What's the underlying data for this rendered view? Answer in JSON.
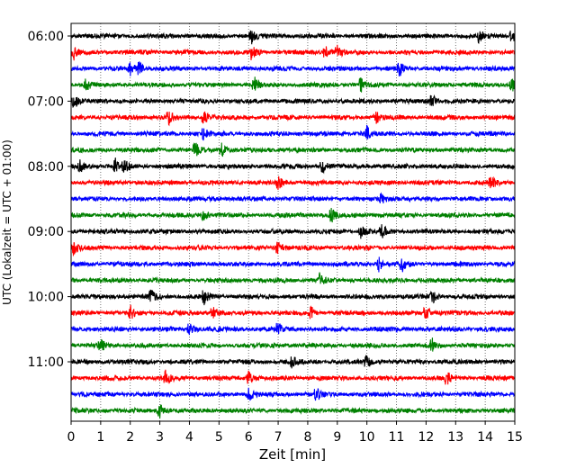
{
  "chart_data": {
    "type": "line",
    "title": "",
    "xlabel": "Zeit  [min]",
    "ylabel": "UTC (Lokalzeit = UTC + 01:00)",
    "xlim": [
      0,
      15
    ],
    "x_ticks": [
      0,
      1,
      2,
      3,
      4,
      5,
      6,
      7,
      8,
      9,
      10,
      11,
      12,
      13,
      14,
      15
    ],
    "grid": "vertical dotted",
    "legend": "none",
    "y_ticks": [
      {
        "label": "06:00",
        "row": 0
      },
      {
        "label": "07:00",
        "row": 4
      },
      {
        "label": "08:00",
        "row": 8
      },
      {
        "label": "09:00",
        "row": 12
      },
      {
        "label": "10:00",
        "row": 16
      },
      {
        "label": "11:00",
        "row": 20
      }
    ],
    "trace_colors": [
      "#000000",
      "#ff0000",
      "#0000ff",
      "#008000"
    ],
    "rows_per_hour": 4,
    "minutes_per_row": 15,
    "traces": [
      {
        "start": "06:00",
        "events": [
          6.1,
          13.8,
          14.9
        ]
      },
      {
        "start": "06:15",
        "events": [
          0.1,
          6.1,
          8.6,
          9.0
        ]
      },
      {
        "start": "06:30",
        "events": [
          2.0,
          2.3,
          11.1
        ]
      },
      {
        "start": "06:45",
        "events": [
          0.5,
          6.2,
          9.8,
          14.9
        ]
      },
      {
        "start": "07:00",
        "events": [
          0.1,
          12.2
        ]
      },
      {
        "start": "07:15",
        "events": [
          3.3,
          4.5,
          10.3
        ]
      },
      {
        "start": "07:30",
        "events": [
          4.5,
          10.0
        ]
      },
      {
        "start": "07:45",
        "events": [
          4.2,
          5.1
        ]
      },
      {
        "start": "08:00",
        "events": [
          0.3,
          1.5,
          1.8,
          8.5
        ]
      },
      {
        "start": "08:15",
        "events": [
          7.0,
          14.2
        ]
      },
      {
        "start": "08:30",
        "events": [
          10.5
        ]
      },
      {
        "start": "08:45",
        "events": [
          4.5,
          8.8
        ]
      },
      {
        "start": "09:00",
        "events": [
          9.8,
          10.5
        ]
      },
      {
        "start": "09:15",
        "events": [
          0.1,
          7.0
        ]
      },
      {
        "start": "09:30",
        "events": [
          10.4,
          11.2
        ]
      },
      {
        "start": "09:45",
        "events": [
          8.4
        ]
      },
      {
        "start": "10:00",
        "events": [
          2.7,
          4.5,
          12.2
        ]
      },
      {
        "start": "10:15",
        "events": [
          2.0,
          4.8,
          8.1,
          12.0
        ]
      },
      {
        "start": "10:30",
        "events": [
          4.0,
          7.0
        ]
      },
      {
        "start": "10:45",
        "events": [
          1.0,
          12.2
        ]
      },
      {
        "start": "11:00",
        "events": [
          7.5,
          10.0
        ]
      },
      {
        "start": "11:15",
        "events": [
          3.2,
          6.0,
          12.7
        ]
      },
      {
        "start": "11:30",
        "events": [
          6.0,
          8.3
        ]
      },
      {
        "start": "11:45",
        "events": [
          3.0
        ]
      }
    ]
  }
}
